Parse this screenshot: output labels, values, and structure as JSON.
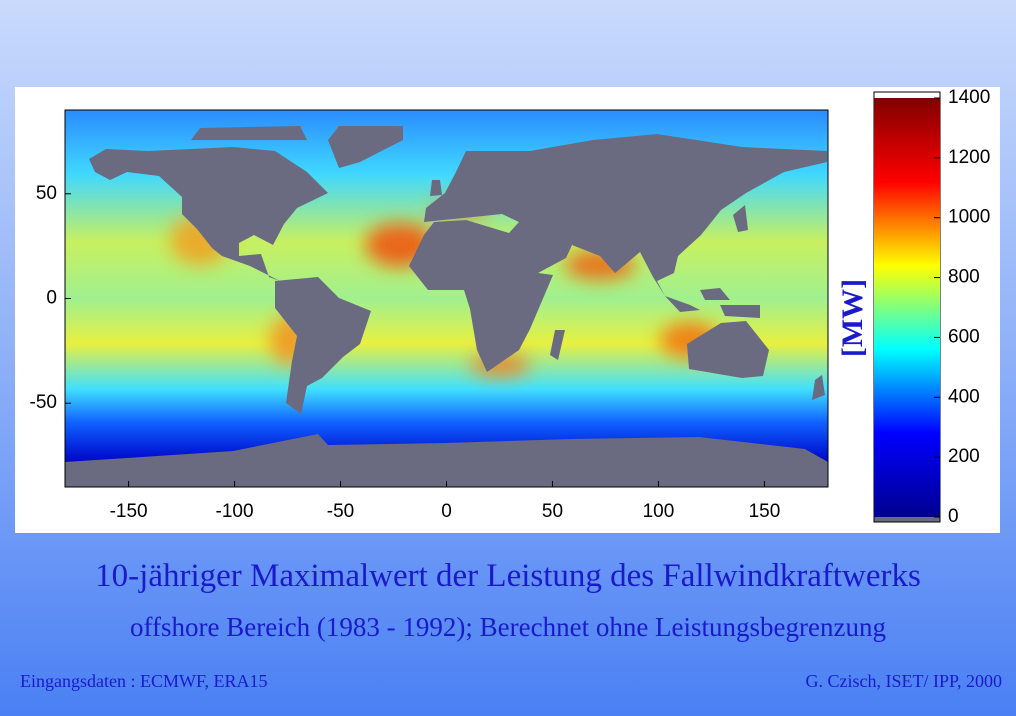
{
  "chart_data": {
    "type": "map",
    "xlim": [
      -180,
      180
    ],
    "ylim": [
      -90,
      90
    ],
    "xticks": [
      -150,
      -100,
      -50,
      0,
      50,
      100,
      150
    ],
    "yticks": [
      -50,
      0,
      50
    ],
    "colorbar": {
      "label": "[MW]",
      "lim": [
        0,
        1400
      ],
      "ticks": [
        0,
        200,
        400,
        600,
        800,
        1000,
        1200,
        1400
      ],
      "colormap": [
        "#00008f",
        "#0000ff",
        "#00ffff",
        "#ffff00",
        "#ff0000",
        "#800000"
      ]
    }
  },
  "slide": {
    "title": "10-jähriger Maximalwert der Leistung des Fallwindkraftwerks",
    "subtitle": "offshore Bereich (1983 - 1992); Berechnet ohne Leistungsbegrenzung",
    "source": "Eingangsdaten : ECMWF, ERA15",
    "author": "G. Czisch, ISET/ IPP, 2000"
  }
}
